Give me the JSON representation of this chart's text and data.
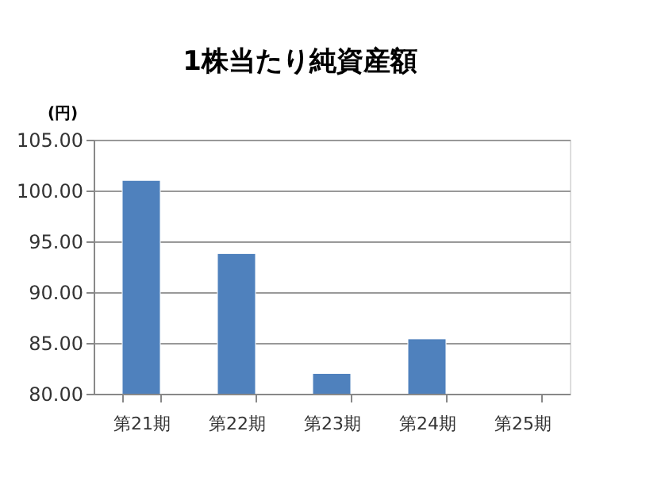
{
  "chart_data": {
    "type": "bar",
    "title": "1株当たり純資産額",
    "ylabel": "(円)",
    "categories": [
      "第21期",
      "第22期",
      "第23期",
      "第24期",
      "第25期"
    ],
    "values": [
      101.0,
      93.8,
      82.0,
      85.4,
      null
    ],
    "color": "#4f81bd",
    "ylim": [
      80,
      105
    ],
    "yticks": [
      {
        "value": 80,
        "label": "80.00"
      },
      {
        "value": 85,
        "label": "85.00"
      },
      {
        "value": 90,
        "label": "90.00"
      },
      {
        "value": 95,
        "label": "95.00"
      },
      {
        "value": 100,
        "label": "100.00"
      },
      {
        "value": 105,
        "label": "105.00"
      }
    ],
    "grid": "y",
    "legend": false
  }
}
